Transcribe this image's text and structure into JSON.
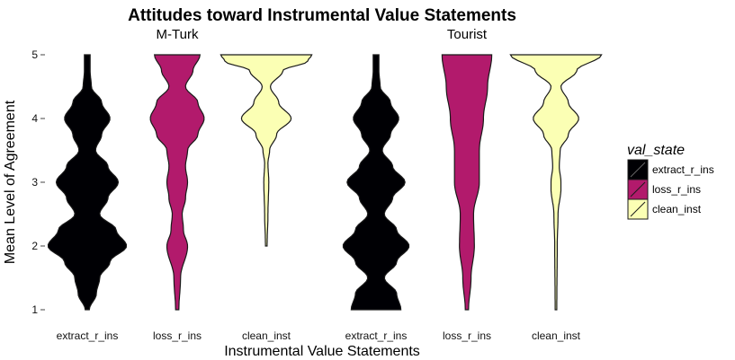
{
  "chart_data": {
    "type": "violin",
    "title": "Attitudes toward Instrumental Value Statements",
    "xlabel": "Instrumental Value Statements",
    "ylabel": "Mean Level of Agreement",
    "ylim": [
      1,
      5
    ],
    "yticks": [
      1,
      2,
      3,
      4,
      5
    ],
    "categories": [
      "extract_r_ins",
      "loss_r_ins",
      "clean_inst"
    ],
    "legend": {
      "title": "val_state",
      "placement": "right",
      "entries": [
        {
          "label": "extract_r_ins",
          "color": "#000004"
        },
        {
          "label": "loss_r_ins",
          "color": "#b21a6c"
        },
        {
          "label": "clean_inst",
          "color": "#fbffb4"
        }
      ]
    },
    "grid": false,
    "panels": [
      {
        "name": "M-Turk",
        "series": [
          {
            "name": "extract_r_ins",
            "range": [
              1,
              5
            ],
            "density": [
              [
                1,
                0.05
              ],
              [
                1.25,
                0.22
              ],
              [
                1.5,
                0.3
              ],
              [
                1.75,
                0.55
              ],
              [
                2,
                0.95
              ],
              [
                2.25,
                0.7
              ],
              [
                2.5,
                0.3
              ],
              [
                2.75,
                0.5
              ],
              [
                3,
                0.75
              ],
              [
                3.25,
                0.5
              ],
              [
                3.5,
                0.2
              ],
              [
                3.75,
                0.35
              ],
              [
                4,
                0.55
              ],
              [
                4.25,
                0.35
              ],
              [
                4.5,
                0.1
              ],
              [
                4.75,
                0.07
              ],
              [
                5,
                0.07
              ]
            ]
          },
          {
            "name": "loss_r_ins",
            "range": [
              1,
              5
            ],
            "density": [
              [
                1,
                0.04
              ],
              [
                1.5,
                0.08
              ],
              [
                2,
                0.25
              ],
              [
                2.25,
                0.15
              ],
              [
                2.5,
                0.12
              ],
              [
                2.75,
                0.2
              ],
              [
                3,
                0.25
              ],
              [
                3.25,
                0.2
              ],
              [
                3.5,
                0.25
              ],
              [
                3.75,
                0.5
              ],
              [
                4,
                0.65
              ],
              [
                4.25,
                0.5
              ],
              [
                4.5,
                0.2
              ],
              [
                4.75,
                0.38
              ],
              [
                5,
                0.55
              ]
            ]
          },
          {
            "name": "clean_inst",
            "range": [
              2,
              5
            ],
            "density": [
              [
                2,
                0.02
              ],
              [
                2.5,
                0.04
              ],
              [
                3,
                0.06
              ],
              [
                3.3,
                0.04
              ],
              [
                3.5,
                0.08
              ],
              [
                3.75,
                0.25
              ],
              [
                4,
                0.6
              ],
              [
                4.25,
                0.3
              ],
              [
                4.5,
                0.1
              ],
              [
                4.75,
                0.4
              ],
              [
                4.9,
                1.0
              ],
              [
                5,
                1.1
              ]
            ]
          }
        ]
      },
      {
        "name": "Tourist",
        "series": [
          {
            "name": "extract_r_ins",
            "range": [
              1,
              5
            ],
            "density": [
              [
                1,
                0.6
              ],
              [
                1.25,
                0.5
              ],
              [
                1.5,
                0.2
              ],
              [
                1.75,
                0.5
              ],
              [
                2,
                0.8
              ],
              [
                2.25,
                0.5
              ],
              [
                2.5,
                0.2
              ],
              [
                2.75,
                0.4
              ],
              [
                3,
                0.7
              ],
              [
                3.25,
                0.4
              ],
              [
                3.5,
                0.15
              ],
              [
                3.75,
                0.35
              ],
              [
                4,
                0.55
              ],
              [
                4.25,
                0.35
              ],
              [
                4.5,
                0.1
              ],
              [
                4.75,
                0.07
              ],
              [
                5,
                0.07
              ]
            ]
          },
          {
            "name": "loss_r_ins",
            "range": [
              1,
              5
            ],
            "density": [
              [
                1,
                0.04
              ],
              [
                1.5,
                0.1
              ],
              [
                2,
                0.18
              ],
              [
                2.5,
                0.16
              ],
              [
                3,
                0.3
              ],
              [
                3.5,
                0.3
              ],
              [
                4,
                0.4
              ],
              [
                4.5,
                0.5
              ],
              [
                5,
                0.6
              ]
            ]
          },
          {
            "name": "clean_inst",
            "range": [
              1,
              5
            ],
            "density": [
              [
                1,
                0.02
              ],
              [
                2,
                0.03
              ],
              [
                2.5,
                0.05
              ],
              [
                2.9,
                0.12
              ],
              [
                3,
                0.12
              ],
              [
                3.25,
                0.08
              ],
              [
                3.5,
                0.1
              ],
              [
                3.75,
                0.3
              ],
              [
                4,
                0.55
              ],
              [
                4.25,
                0.3
              ],
              [
                4.5,
                0.12
              ],
              [
                4.75,
                0.5
              ],
              [
                5,
                1.1
              ]
            ]
          }
        ]
      }
    ]
  }
}
